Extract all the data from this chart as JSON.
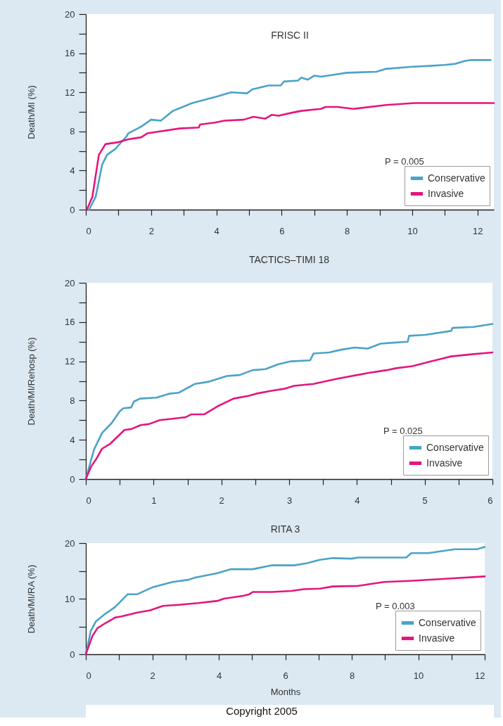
{
  "chart_data": [
    {
      "type": "line",
      "title": "FRISC II",
      "ylabel": "Death/MI (%)",
      "legend": "bottom right",
      "line_style": "solid",
      "annotations": [
        "P = 0.005"
      ],
      "xlim": [
        0,
        12.5
      ],
      "ylim": [
        0,
        20
      ],
      "xticks": [
        0,
        {
          "value": 1,
          "label": null
        },
        2,
        {
          "value": 3,
          "label": null
        },
        4,
        {
          "value": 5,
          "label": null
        },
        6,
        {
          "value": 7,
          "label": null
        },
        8,
        {
          "value": 9,
          "label": null
        },
        10,
        {
          "value": 11,
          "label": null
        },
        12
      ],
      "yticks": [
        0,
        {
          "value": 2,
          "label": null
        },
        4,
        {
          "value": 6,
          "label": null
        },
        8,
        {
          "value": 10,
          "label": null
        },
        12,
        {
          "value": 14,
          "label": null
        },
        16,
        {
          "value": 18,
          "label": null
        },
        20
      ],
      "series": [
        {
          "name": "Conservative",
          "color": "#4ba3c7",
          "x": [
            0.1,
            0.3,
            0.5,
            0.65,
            0.9,
            1.25,
            1.3,
            1.7,
            2.0,
            2.3,
            2.67,
            3.26,
            4.05,
            4.45,
            4.94,
            5.1,
            5.6,
            5.97,
            6.07,
            6.5,
            6.6,
            6.8,
            7.0,
            7.2,
            7.6,
            8.0,
            8.9,
            9.2,
            9.96,
            10.55,
            11.0,
            11.3,
            11.6,
            11.8,
            12.4
          ],
          "values": [
            0,
            1.3,
            4.6,
            5.6,
            6.2,
            7.5,
            7.8,
            8.5,
            9.2,
            9.1,
            10.1,
            10.9,
            11.6,
            12.0,
            11.9,
            12.3,
            12.7,
            12.7,
            13.1,
            13.2,
            13.5,
            13.3,
            13.7,
            13.6,
            13.8,
            14.0,
            14.1,
            14.4,
            14.6,
            14.7,
            14.8,
            14.9,
            15.2,
            15.3,
            15.3
          ]
        },
        {
          "name": "Invasive",
          "color": "#e3177c",
          "x": [
            0.03,
            0.2,
            0.4,
            0.6,
            1.0,
            1.3,
            1.7,
            1.88,
            2.28,
            2.87,
            3.46,
            3.5,
            3.95,
            4.25,
            4.84,
            5.13,
            5.5,
            5.7,
            5.9,
            6.3,
            6.6,
            7.2,
            7.35,
            7.7,
            8.2,
            9.2,
            10.06,
            11.1,
            12.5
          ],
          "values": [
            0,
            1.3,
            5.6,
            6.7,
            6.9,
            7.2,
            7.4,
            7.8,
            8.0,
            8.3,
            8.4,
            8.7,
            8.9,
            9.1,
            9.2,
            9.5,
            9.3,
            9.7,
            9.6,
            9.9,
            10.1,
            10.3,
            10.5,
            10.5,
            10.3,
            10.7,
            10.9,
            10.9,
            10.9
          ]
        }
      ]
    },
    {
      "type": "line",
      "title": "TACTICS–TIMI 18",
      "ylabel": "Death/MI/Rehosp (%)",
      "legend": "bottom right",
      "line_style": "solid",
      "annotations": [
        "P = 0.025"
      ],
      "xlim": [
        0,
        6
      ],
      "ylim": [
        0,
        20
      ],
      "xticks": [
        0,
        {
          "value": 0.5,
          "label": null
        },
        1,
        {
          "value": 1.5,
          "label": null
        },
        2,
        {
          "value": 2.5,
          "label": null
        },
        3,
        {
          "value": 3.5,
          "label": null
        },
        4,
        {
          "value": 4.5,
          "label": null
        },
        5,
        {
          "value": 5.5,
          "label": null
        },
        6
      ],
      "yticks": [
        0,
        {
          "value": 2,
          "label": null
        },
        4,
        {
          "value": 6,
          "label": null
        },
        8,
        {
          "value": 10,
          "label": null
        },
        12,
        {
          "value": 14,
          "label": null
        },
        16,
        {
          "value": 18,
          "label": null
        },
        20
      ],
      "series": [
        {
          "name": "Conservative",
          "color": "#4ba3c7",
          "x": [
            0,
            0.12,
            0.24,
            0.38,
            0.5,
            0.55,
            0.67,
            0.71,
            0.8,
            1.04,
            1.23,
            1.37,
            1.61,
            1.8,
            2.08,
            2.27,
            2.46,
            2.65,
            2.84,
            3.03,
            3.31,
            3.36,
            3.59,
            3.78,
            3.97,
            4.16,
            4.35,
            4.54,
            4.75,
            4.77,
            5.01,
            5.39,
            5.41,
            5.72,
            6.0
          ],
          "values": [
            0,
            3.0,
            4.7,
            5.7,
            6.9,
            7.2,
            7.3,
            7.9,
            8.2,
            8.3,
            8.7,
            8.8,
            9.7,
            9.9,
            10.5,
            10.6,
            11.1,
            11.2,
            11.7,
            12.0,
            12.1,
            12.8,
            12.9,
            13.2,
            13.4,
            13.3,
            13.8,
            13.9,
            14.0,
            14.6,
            14.7,
            15.1,
            15.4,
            15.5,
            15.8
          ]
        },
        {
          "name": "Invasive",
          "color": "#e3177c",
          "x": [
            0,
            0.08,
            0.15,
            0.24,
            0.36,
            0.57,
            0.67,
            0.81,
            0.93,
            1.09,
            1.47,
            1.56,
            1.75,
            1.94,
            2.18,
            2.41,
            2.51,
            2.74,
            2.93,
            3.07,
            3.36,
            3.69,
            4.16,
            4.44,
            4.58,
            4.82,
            5.1,
            5.39,
            5.67,
            6.0
          ],
          "values": [
            0,
            1.3,
            2.0,
            3.1,
            3.6,
            5.0,
            5.1,
            5.5,
            5.6,
            6.0,
            6.3,
            6.6,
            6.6,
            7.4,
            8.2,
            8.5,
            8.7,
            9.0,
            9.2,
            9.5,
            9.7,
            10.2,
            10.8,
            11.1,
            11.3,
            11.5,
            12.0,
            12.5,
            12.7,
            12.9
          ]
        }
      ]
    },
    {
      "type": "line",
      "title": "RITA 3",
      "xlabel": "Months",
      "ylabel": "Death/MI/RA (%)",
      "legend": "bottom right",
      "line_style": "solid",
      "annotations": [
        "P = 0.003"
      ],
      "xlim": [
        0,
        12
      ],
      "ylim": [
        0,
        20
      ],
      "xticks": [
        0,
        {
          "value": 1,
          "label": null
        },
        2,
        {
          "value": 3,
          "label": null
        },
        4,
        {
          "value": 5,
          "label": null
        },
        6,
        {
          "value": 7,
          "label": null
        },
        8,
        {
          "value": 9,
          "label": null
        },
        10,
        {
          "value": 11,
          "label": null
        },
        12
      ],
      "yticks": [
        0,
        {
          "value": 5,
          "label": null
        },
        10,
        {
          "value": 15,
          "label": null
        },
        20
      ],
      "series": [
        {
          "name": "Conservative",
          "color": "#4ba3c7",
          "x": [
            0,
            0.15,
            0.3,
            0.59,
            0.88,
            1.26,
            1.55,
            1.84,
            2.03,
            2.61,
            3.09,
            3.29,
            3.96,
            4.35,
            5.02,
            5.6,
            6.27,
            6.66,
            7.04,
            7.43,
            8.0,
            8.2,
            9.64,
            9.79,
            10.3,
            11.1,
            11.76,
            12.0
          ],
          "values": [
            0,
            4.2,
            5.9,
            7.3,
            8.5,
            10.8,
            10.8,
            11.6,
            12.1,
            13.0,
            13.4,
            13.8,
            14.6,
            15.3,
            15.3,
            16.0,
            16.0,
            16.4,
            17.0,
            17.3,
            17.2,
            17.4,
            17.4,
            18.2,
            18.2,
            18.9,
            18.9,
            19.3
          ]
        },
        {
          "name": "Invasive",
          "color": "#e3177c",
          "x": [
            0,
            0.2,
            0.35,
            0.59,
            0.88,
            1.07,
            1.55,
            1.94,
            2.32,
            2.8,
            3.38,
            3.96,
            4.15,
            4.73,
            4.92,
            5.02,
            5.6,
            6.18,
            6.56,
            7.04,
            7.43,
            8.2,
            8.97,
            9.74,
            10.9,
            12.0
          ],
          "values": [
            0,
            3.3,
            4.7,
            5.6,
            6.6,
            6.8,
            7.5,
            7.9,
            8.7,
            8.9,
            9.2,
            9.6,
            10.0,
            10.5,
            10.8,
            11.2,
            11.2,
            11.4,
            11.7,
            11.8,
            12.2,
            12.3,
            13.0,
            13.2,
            13.6,
            14.0
          ]
        }
      ]
    },
    {
      "type": "other",
      "annotations": [
        "Copyright 2005"
      ]
    }
  ]
}
